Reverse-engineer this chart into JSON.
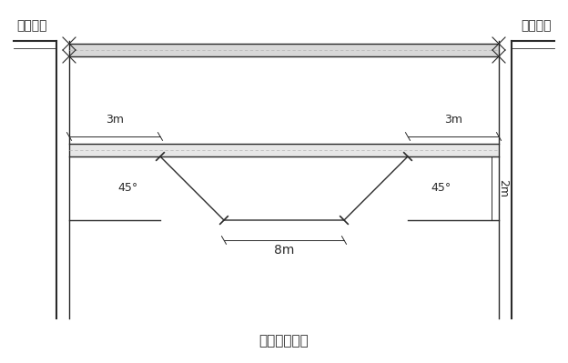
{
  "bg_color": "#ffffff",
  "line_color": "#2a2a2a",
  "gray_color": "#aaaaaa",
  "dashed_color": "#bbbbbb",
  "fig_width": 6.24,
  "fig_height": 3.99,
  "title_bottom": "基坑开挨底面",
  "label_left": "东侧地面",
  "label_right": "西侧地面",
  "label_3m_left": "3m",
  "label_3m_right": "3m",
  "label_8m": "8m",
  "label_45_left": "45°",
  "label_45_right": "45°",
  "label_2m": "2m"
}
